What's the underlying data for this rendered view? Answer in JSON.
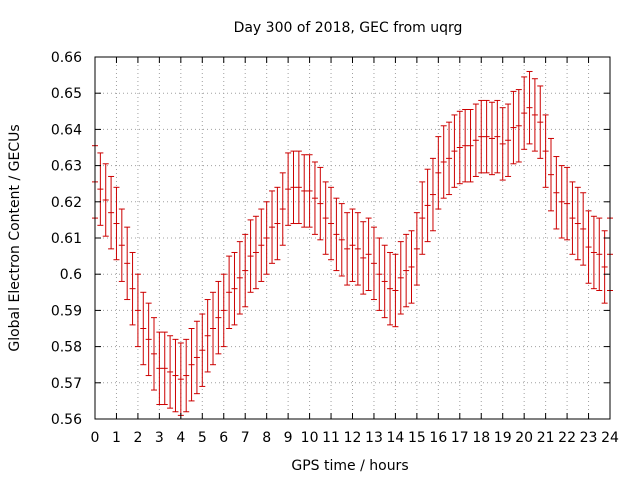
{
  "chart_data": {
    "type": "scatter",
    "title": "Day 300 of 2018, GEC from uqrg",
    "xlabel": "GPS time / hours",
    "ylabel": "Global Electron Content / GECUs",
    "xlim": [
      0,
      24
    ],
    "ylim": [
      0.56,
      0.66
    ],
    "grid": true,
    "x_ticks": [
      "0",
      "1",
      "2",
      "3",
      "4",
      "5",
      "6",
      "7",
      "8",
      "9",
      "10",
      "11",
      "12",
      "13",
      "14",
      "15",
      "16",
      "17",
      "18",
      "19",
      "20",
      "21",
      "22",
      "23",
      "24"
    ],
    "y_ticks": [
      "0.56",
      "0.57",
      "0.58",
      "0.59",
      "0.6",
      "0.61",
      "0.62",
      "0.63",
      "0.64",
      "0.65",
      "0.66"
    ],
    "color": "#cc0000",
    "error": 0.01,
    "series": [
      {
        "x": [
          0,
          0.25,
          0.5,
          0.75,
          1,
          1.25,
          1.5,
          1.75,
          2,
          2.25,
          2.5,
          2.75,
          3,
          3.25,
          3.5,
          3.75,
          4,
          4.25,
          4.5,
          4.75,
          5,
          5.25,
          5.5,
          5.75,
          6,
          6.25,
          6.5,
          6.75,
          7,
          7.25,
          7.5,
          7.75,
          8,
          8.25,
          8.5,
          8.75,
          9,
          9.25,
          9.5,
          9.75,
          10,
          10.25,
          10.5,
          10.75,
          11,
          11.25,
          11.5,
          11.75,
          12,
          12.25,
          12.5,
          12.75,
          13,
          13.25,
          13.5,
          13.75,
          14,
          14.25,
          14.5,
          14.75,
          15,
          15.25,
          15.5,
          15.75,
          16,
          16.25,
          16.5,
          16.75,
          17,
          17.25,
          17.5,
          17.75,
          18,
          18.25,
          18.5,
          18.75,
          19,
          19.25,
          19.5,
          19.75,
          20,
          20.25,
          20.5,
          20.75,
          21,
          21.25,
          21.5,
          21.75,
          22,
          22.25,
          22.5,
          22.75,
          23,
          23.25,
          23.5,
          23.75,
          24
        ],
        "y": [
          0.6255,
          0.6235,
          0.6205,
          0.617,
          0.614,
          0.608,
          0.603,
          0.596,
          0.59,
          0.585,
          0.582,
          0.578,
          0.574,
          0.574,
          0.573,
          0.572,
          0.571,
          0.572,
          0.575,
          0.577,
          0.579,
          0.583,
          0.585,
          0.588,
          0.59,
          0.595,
          0.596,
          0.599,
          0.601,
          0.605,
          0.606,
          0.608,
          0.61,
          0.613,
          0.614,
          0.618,
          0.6235,
          0.624,
          0.624,
          0.623,
          0.623,
          0.621,
          0.6195,
          0.6155,
          0.614,
          0.611,
          0.6095,
          0.607,
          0.608,
          0.607,
          0.6045,
          0.6055,
          0.603,
          0.6,
          0.598,
          0.596,
          0.5955,
          0.599,
          0.601,
          0.602,
          0.607,
          0.6155,
          0.619,
          0.622,
          0.628,
          0.631,
          0.632,
          0.634,
          0.635,
          0.6355,
          0.6355,
          0.637,
          0.638,
          0.638,
          0.6375,
          0.638,
          0.636,
          0.637,
          0.6405,
          0.641,
          0.6445,
          0.646,
          0.644,
          0.642,
          0.634,
          0.6275,
          0.6225,
          0.62,
          0.6195,
          0.6155,
          0.614,
          0.6125,
          0.6075,
          0.606,
          0.6055,
          0.602,
          0.6055
        ]
      }
    ]
  }
}
